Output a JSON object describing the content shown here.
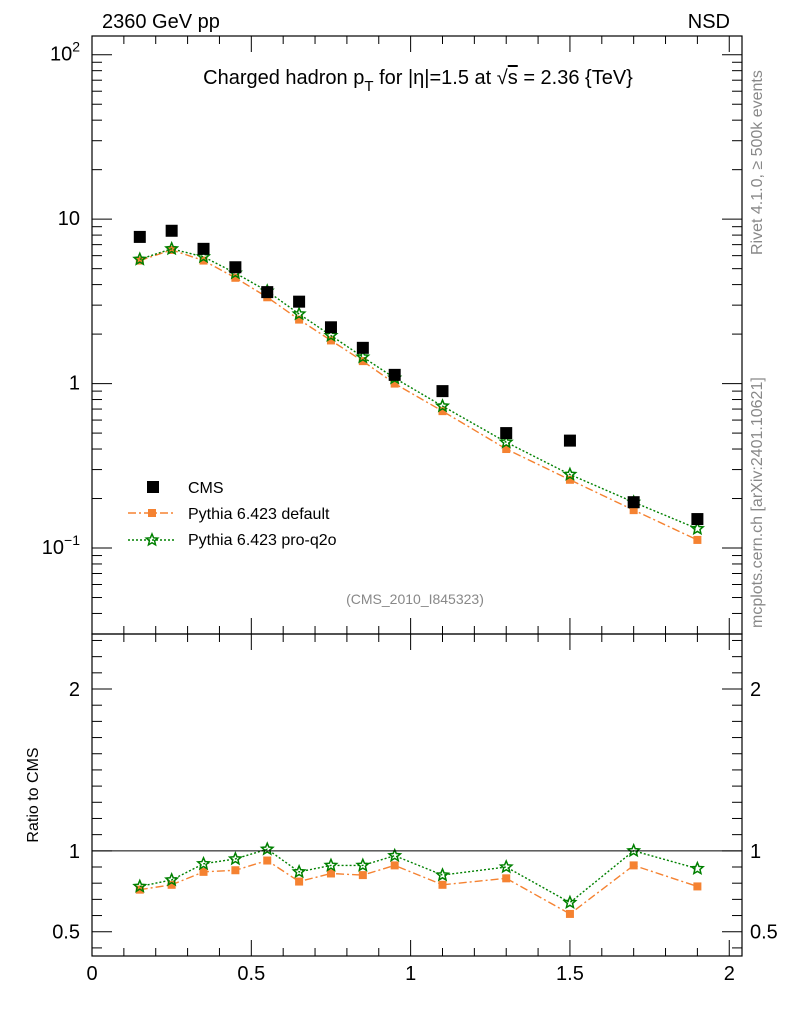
{
  "header": {
    "left_label": "2360 GeV pp",
    "right_label": "NSD",
    "analysis_id": "(CMS_2010_I845323)",
    "side_left": "mcplots.cern.ch [arXiv:2401.10621]",
    "side_right": "Rivet 4.1.0, ≥ 500k events"
  },
  "colors": {
    "cms": "#000000",
    "pythia_default": "#f58231",
    "pythia_proq2o": "#008000",
    "side_text": "#888888"
  },
  "chart_data": [
    {
      "type": "scatter",
      "title": "Charged hadron p_T for |η|=1.5 at √s = 2.36 {TeV}",
      "title_parts": {
        "pre": "Charged hadron p",
        "sub": "T",
        "mid": " for |η|=1.5 at ",
        "sqrt": "√",
        "s": "s",
        "post": " = 2.36 {TeV}"
      },
      "xlabel": "",
      "ylabel": "",
      "yscale": "log",
      "xlim": [
        0,
        2.04
      ],
      "ylim": [
        0.03,
        130
      ],
      "y_tick_labels": [
        {
          "value": 0.1,
          "base": "10",
          "exp": "−1"
        },
        {
          "value": 1,
          "base": "1",
          "exp": ""
        },
        {
          "value": 10,
          "base": "10",
          "exp": ""
        },
        {
          "value": 100,
          "base": "10",
          "exp": "2"
        }
      ],
      "x": [
        0.15,
        0.25,
        0.35,
        0.45,
        0.55,
        0.65,
        0.75,
        0.85,
        0.95,
        1.1,
        1.3,
        1.5,
        1.7,
        1.9
      ],
      "series": [
        {
          "name": "CMS",
          "marker": "square",
          "line": "none",
          "values": [
            7.8,
            8.5,
            6.6,
            5.1,
            3.6,
            3.15,
            2.2,
            1.65,
            1.13,
            0.9,
            0.5,
            0.45,
            0.19,
            0.15
          ]
        },
        {
          "name": "Pythia 6.423 default",
          "marker": "square-small",
          "line": "dashdot",
          "values": [
            5.6,
            6.5,
            5.6,
            4.4,
            3.35,
            2.45,
            1.83,
            1.37,
            1.0,
            0.68,
            0.4,
            0.26,
            0.17,
            0.112
          ]
        },
        {
          "name": "Pythia 6.423 pro-q2o",
          "marker": "star",
          "line": "dotted",
          "values": [
            5.7,
            6.6,
            5.9,
            4.7,
            3.65,
            2.65,
            1.96,
            1.45,
            1.08,
            0.73,
            0.44,
            0.28,
            0.19,
            0.131
          ]
        }
      ],
      "legend": {
        "placement": "bottom-left",
        "entries": [
          "CMS",
          "Pythia 6.423 default",
          "Pythia 6.423 pro-q2o"
        ]
      }
    },
    {
      "type": "line",
      "title": "",
      "xlabel": "",
      "ylabel": "Ratio to CMS",
      "xlim": [
        0,
        2.04
      ],
      "ylim": [
        0.35,
        2.34
      ],
      "reference_line": 1.0,
      "y_tick_labels": [
        "0.5",
        "1",
        "2"
      ],
      "y_ticks": [
        0.5,
        1,
        2
      ],
      "x_tick_labels": [
        "0",
        "0.5",
        "1",
        "1.5",
        "2"
      ],
      "x_ticks": [
        0,
        0.5,
        1,
        1.5,
        2
      ],
      "x": [
        0.15,
        0.25,
        0.35,
        0.45,
        0.55,
        0.65,
        0.75,
        0.85,
        0.95,
        1.1,
        1.3,
        1.5,
        1.7,
        1.9
      ],
      "series": [
        {
          "name": "Pythia 6.423 default",
          "marker": "square-small",
          "line": "dashdot",
          "values": [
            0.76,
            0.79,
            0.87,
            0.88,
            0.94,
            0.81,
            0.86,
            0.85,
            0.91,
            0.79,
            0.83,
            0.61,
            0.91,
            0.78
          ]
        },
        {
          "name": "Pythia 6.423 pro-q2o",
          "marker": "star",
          "line": "dotted",
          "values": [
            0.78,
            0.82,
            0.92,
            0.95,
            1.01,
            0.87,
            0.91,
            0.91,
            0.97,
            0.85,
            0.9,
            0.68,
            1.0,
            0.89
          ]
        }
      ]
    }
  ]
}
